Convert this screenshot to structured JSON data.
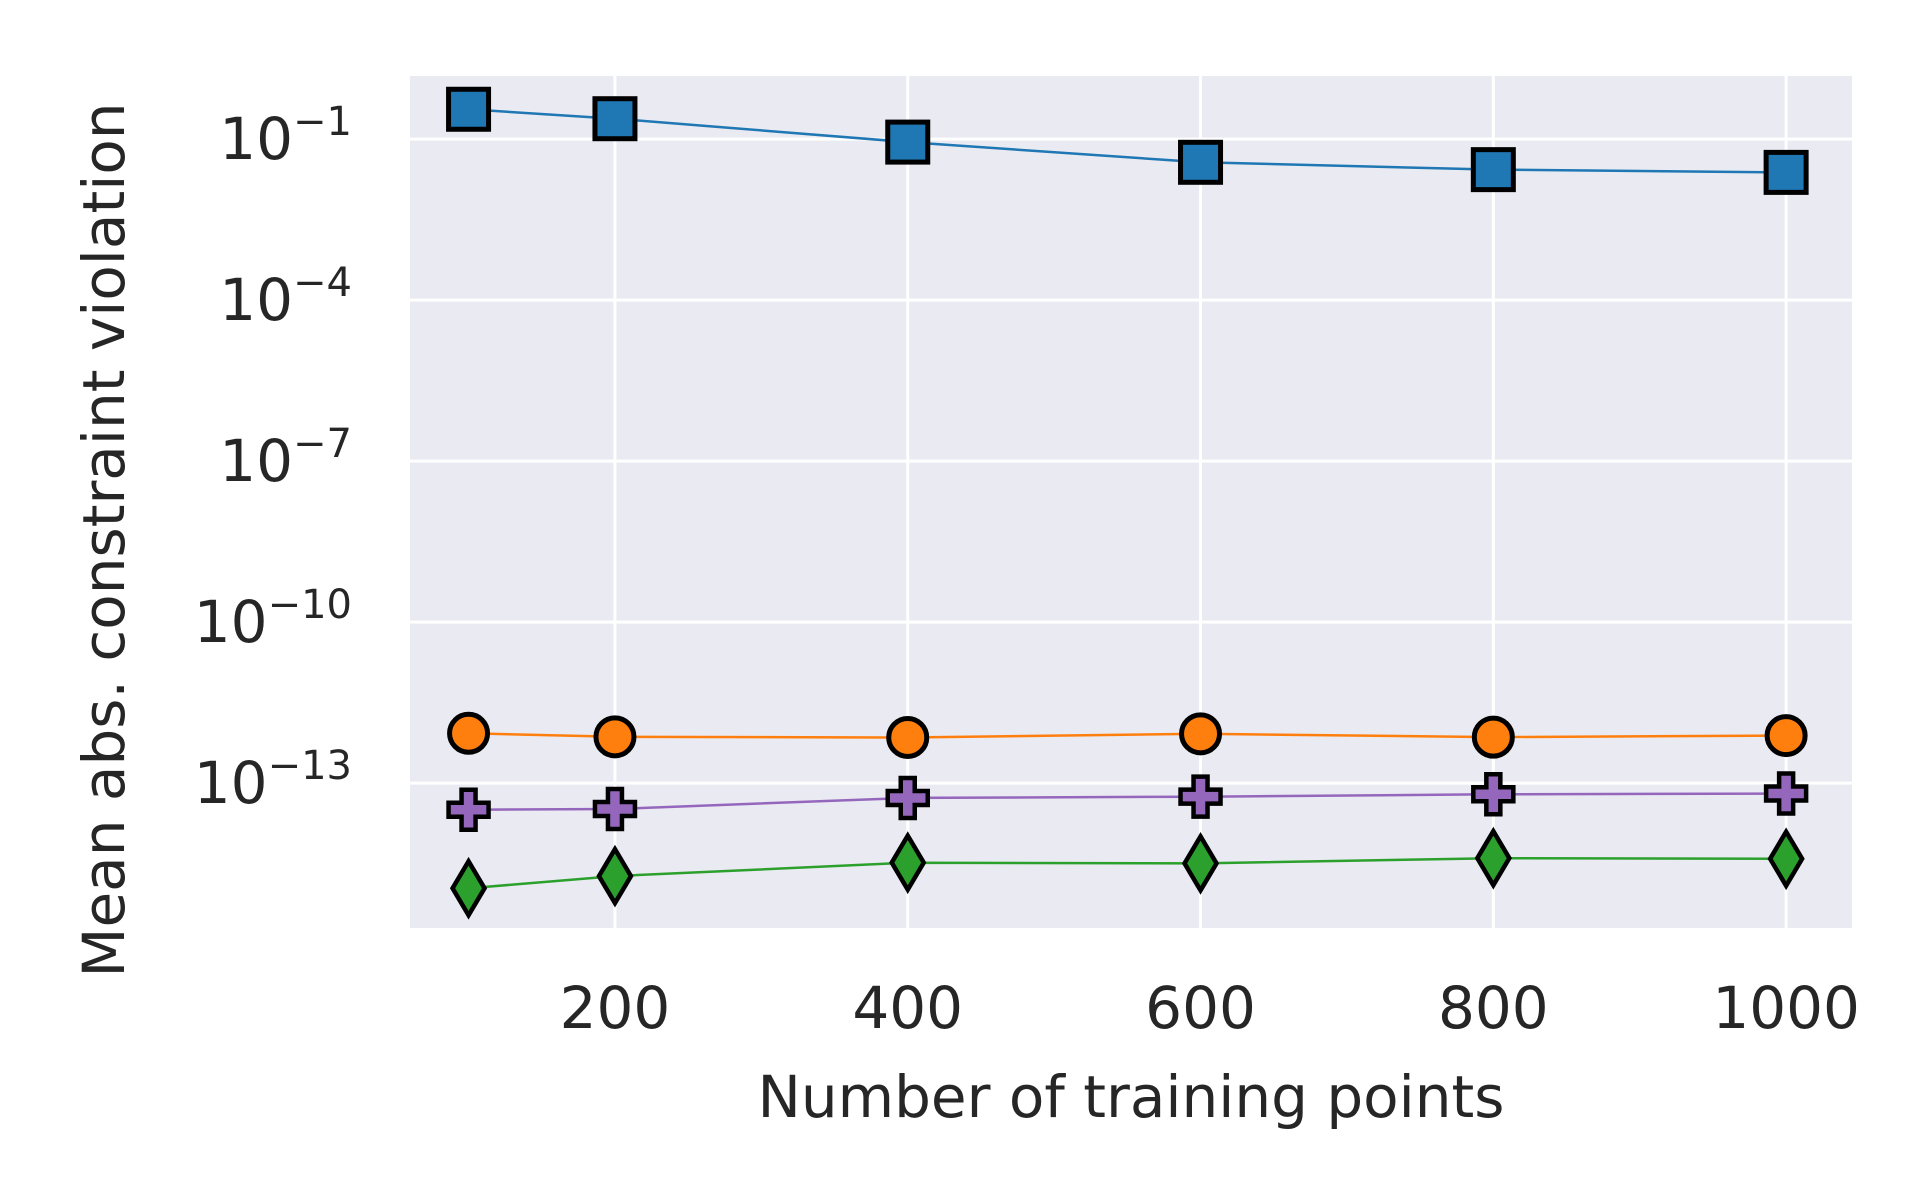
{
  "chart_data": {
    "type": "line",
    "xlabel": "Number of training points",
    "ylabel": "Mean abs. constraint violation",
    "yscale": "log",
    "ylim": [
      2e-16,
      1.5
    ],
    "xlim": [
      60,
      1045
    ],
    "grid": true,
    "x": [
      100,
      200,
      400,
      600,
      800,
      1000
    ],
    "x_ticks": [
      {
        "value": 200,
        "label": "200"
      },
      {
        "value": 400,
        "label": "400"
      },
      {
        "value": 600,
        "label": "600"
      },
      {
        "value": 800,
        "label": "800"
      },
      {
        "value": 1000,
        "label": "1000"
      }
    ],
    "y_ticks": [
      {
        "exp": -1,
        "base": "10",
        "sup": "−1"
      },
      {
        "exp": -4,
        "base": "10",
        "sup": "−4"
      },
      {
        "exp": -7,
        "base": "10",
        "sup": "−7"
      },
      {
        "exp": -10,
        "base": "10",
        "sup": "−10"
      },
      {
        "exp": -13,
        "base": "10",
        "sup": "−13"
      }
    ],
    "series": [
      {
        "marker": "square",
        "color": "#1f77b4",
        "values": [
          0.36,
          0.24,
          0.088,
          0.037,
          0.027,
          0.024
        ]
      },
      {
        "marker": "circle",
        "color": "#ff7f0e",
        "values": [
          8.5e-13,
          7.3e-13,
          7.1e-13,
          8.3e-13,
          7.2e-13,
          7.7e-13
        ]
      },
      {
        "marker": "plus",
        "color": "#9467bd",
        "values": [
          3.2e-14,
          3.3e-14,
          5.3e-14,
          5.6e-14,
          6.2e-14,
          6.4e-14
        ]
      },
      {
        "marker": "diamond",
        "color": "#2ca02c",
        "values": [
          1.1e-15,
          1.85e-15,
          3.3e-15,
          3.2e-15,
          4e-15,
          3.9e-15
        ]
      }
    ]
  }
}
